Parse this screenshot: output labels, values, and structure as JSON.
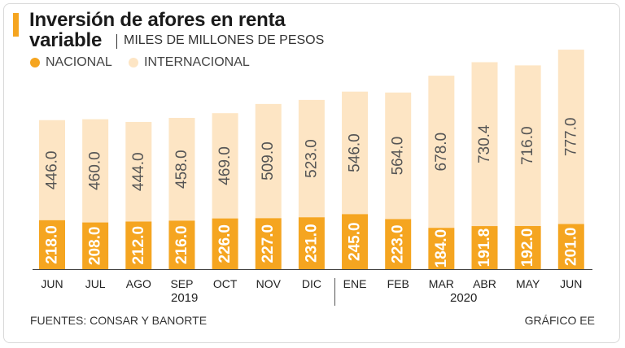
{
  "header": {
    "title_line1": "Inversión de afores en renta",
    "title_line2": "variable",
    "subtitle": "MILES DE MILLONES DE PESOS"
  },
  "colors": {
    "nacional": "#f5a520",
    "internacional": "#fde5c4",
    "value_label": "#555555",
    "accent": "#f5a520"
  },
  "legend": {
    "nacional": "NACIONAL",
    "internacional": "INTERNACIONAL"
  },
  "years": {
    "first": "2019",
    "second": "2020"
  },
  "footer": {
    "source": "FUENTES: CONSAR Y BANORTE",
    "credit": "GRÁFICO EE"
  },
  "chart_data": {
    "type": "bar",
    "stacked": true,
    "title": "Inversión de afores en renta variable",
    "ylabel": "Miles de millones de pesos",
    "categories": [
      "JUN",
      "JUL",
      "AGO",
      "SEP",
      "OCT",
      "NOV",
      "DIC",
      "ENE",
      "FEB",
      "MAR",
      "ABR",
      "MAY",
      "JUN"
    ],
    "series": [
      {
        "name": "NACIONAL",
        "values": [
          "218.0",
          "208.0",
          "212.0",
          "216.0",
          "226.0",
          "227.0",
          "231.0",
          "245.0",
          "223.0",
          "184.0",
          "191.8",
          "192.0",
          "201.0"
        ]
      },
      {
        "name": "INTERNACIONAL",
        "values": [
          "446.0",
          "460.0",
          "444.0",
          "458.0",
          "469.0",
          "509.0",
          "523.0",
          "546.0",
          "564.0",
          "678.0",
          "730.4",
          "716.0",
          "777.0"
        ]
      }
    ],
    "ylim": [
      0,
      1000
    ]
  }
}
